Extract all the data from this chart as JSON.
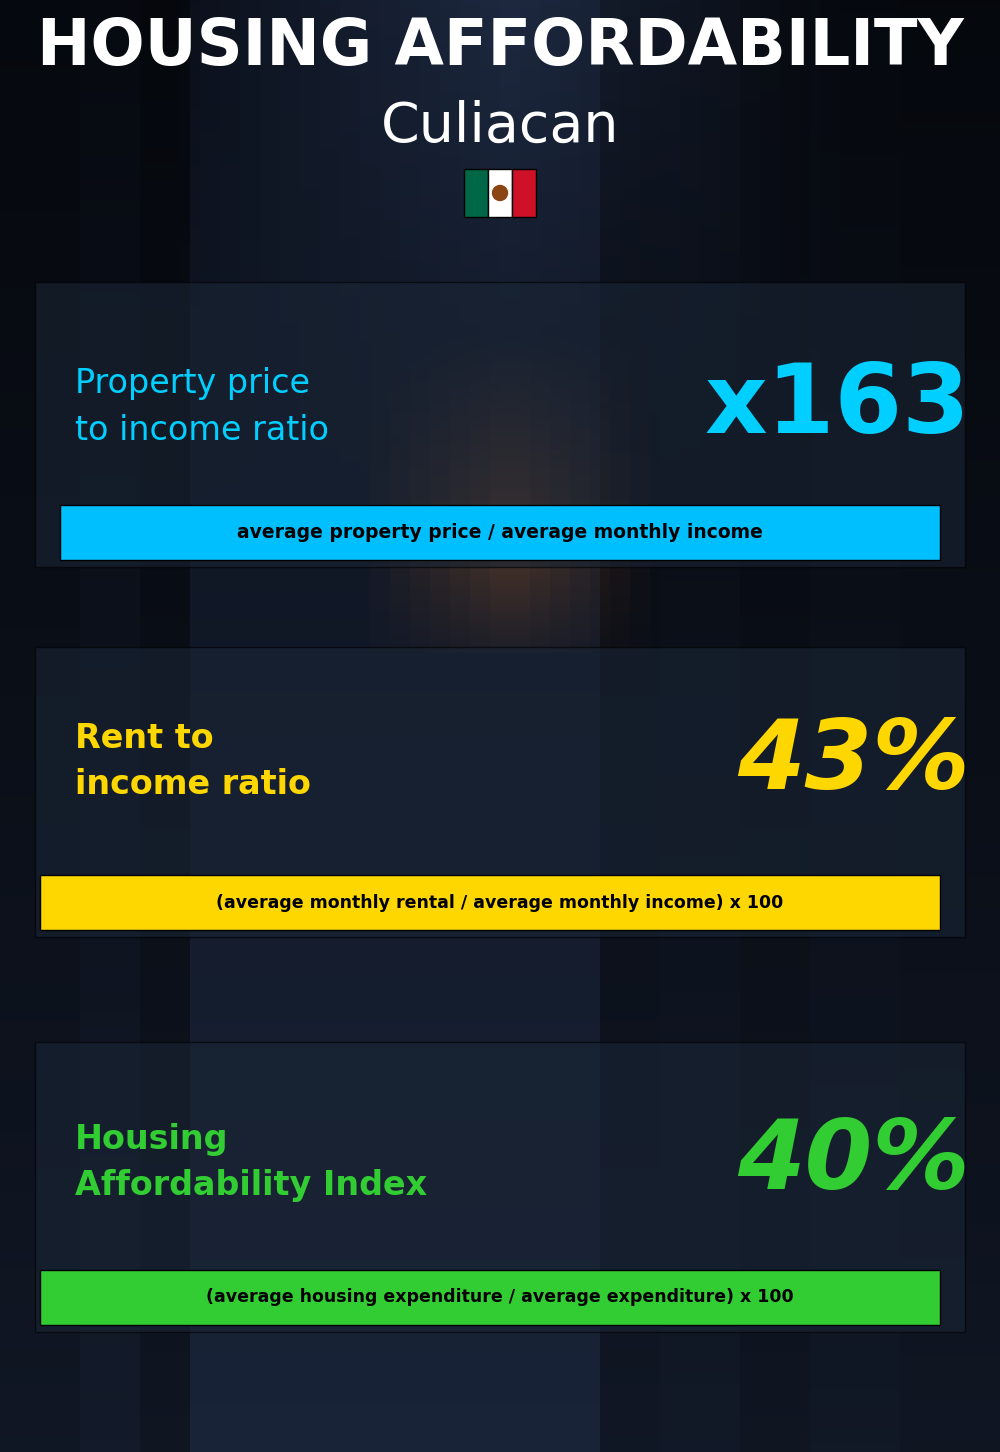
{
  "title_line1": "HOUSING AFFORDABILITY",
  "title_line2": "Culiacan",
  "bg_color": "#0d1b2a",
  "section1_label": "Property price\nto income ratio",
  "section1_value": "x163",
  "section1_label_color": "#00cfff",
  "section1_value_color": "#00cfff",
  "section1_band_color": "#00bfff",
  "section1_band_text": "average property price / average monthly income",
  "section2_label": "Rent to\nincome ratio",
  "section2_value": "43%",
  "section2_label_color": "#ffd700",
  "section2_value_color": "#ffd700",
  "section2_band_color": "#ffd700",
  "section2_band_text": "(average monthly rental / average monthly income) x 100",
  "section3_label": "Housing\nAffordability Index",
  "section3_value": "40%",
  "section3_label_color": "#32cd32",
  "section3_value_color": "#32cd32",
  "section3_band_color": "#32cd32",
  "section3_band_text": "(average housing expenditure / average expenditure) x 100",
  "title_color": "#ffffff",
  "band_text_color": "#000000",
  "flag_green": "#006847",
  "flag_white": "#FFFFFF",
  "flag_red": "#CE1126",
  "section_overlay_color": "#1a2535",
  "section_overlay_alpha": 0.6
}
